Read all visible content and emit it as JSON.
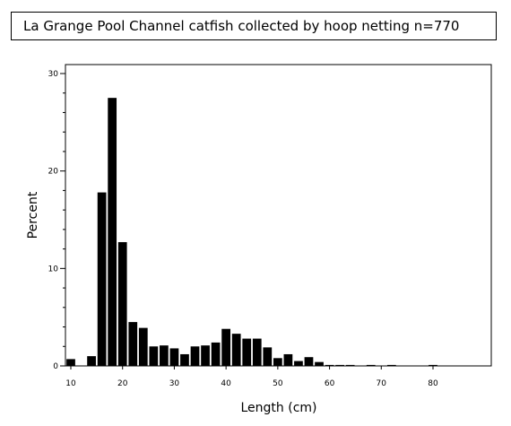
{
  "chart_data": {
    "type": "bar",
    "title": "La Grange Pool Channel catfish collected by hoop netting n=770",
    "xlabel": "Length (cm)",
    "ylabel": "Percent",
    "xlim": [
      10,
      90
    ],
    "ylim": [
      0,
      30
    ],
    "bin_width": 2,
    "x_ticks": [
      10,
      20,
      30,
      40,
      50,
      60,
      70,
      80
    ],
    "y_ticks": [
      0,
      10,
      20,
      30
    ],
    "grid": false,
    "legend": "none",
    "bar_color": "#000000",
    "x": [
      10,
      14,
      16,
      18,
      20,
      22,
      24,
      26,
      28,
      30,
      32,
      34,
      36,
      38,
      40,
      42,
      44,
      46,
      48,
      50,
      52,
      54,
      56,
      58,
      60,
      62,
      64,
      68,
      72,
      80
    ],
    "values": [
      0.7,
      1.0,
      17.8,
      27.5,
      12.7,
      4.5,
      3.9,
      2.0,
      2.1,
      1.8,
      1.2,
      2.0,
      2.1,
      2.4,
      3.8,
      3.3,
      2.8,
      2.8,
      1.9,
      0.8,
      1.2,
      0.5,
      0.9,
      0.4,
      0.1,
      0.1,
      0.1,
      0.1,
      0.1,
      0.1
    ]
  }
}
